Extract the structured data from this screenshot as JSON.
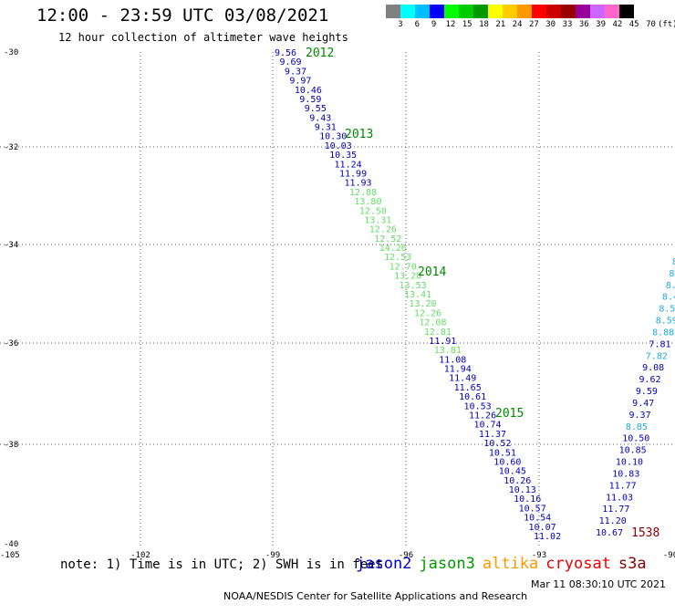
{
  "header": {
    "title": "12:00 - 23:59 UTC 03/08/2021",
    "subtitle": "12 hour collection of altimeter wave heights"
  },
  "legend": {
    "colors": [
      "#808080",
      "#00ffff",
      "#00bfff",
      "#0000ff",
      "#00ff00",
      "#00cc00",
      "#009900",
      "#ffff00",
      "#ffcc00",
      "#ff9900",
      "#ff0000",
      "#cc0000",
      "#990000",
      "#990099",
      "#cc66ff",
      "#ff66cc",
      "#000000"
    ],
    "labels": [
      "3",
      "6",
      "9",
      "12",
      "15",
      "18",
      "21",
      "24",
      "27",
      "30",
      "33",
      "36",
      "39",
      "42",
      "45",
      "70",
      "(ft)"
    ]
  },
  "map": {
    "lat_ticks": [
      "-30",
      "-32",
      "-34",
      "-36",
      "-38",
      "-40"
    ],
    "lon_ticks": [
      "-105",
      "-102",
      "-99",
      "-96",
      "-93",
      "-90"
    ],
    "time_labels": [
      {
        "text": "2012",
        "color": "#008800"
      },
      {
        "text": "2013",
        "color": "#008800"
      },
      {
        "text": "2014",
        "color": "#008800"
      },
      {
        "text": "2015",
        "color": "#008800"
      },
      {
        "text": "1538",
        "color": "#880000"
      }
    ],
    "track_left": {
      "values": [
        "9.56",
        "9.69",
        "9.37",
        "9.97",
        "10.46",
        "9.59",
        "9.55",
        "9.43",
        "9.31",
        "10.30",
        "10.03",
        "10.35",
        "11.24",
        "11.99",
        "11.93",
        "12.88",
        "13.80",
        "12.50",
        "13.31",
        "12.26",
        "12.52",
        "14.26",
        "12.53",
        "12.70",
        "13.28",
        "13.53",
        "13.41",
        "13.20",
        "12.26",
        "12.08",
        "12.81",
        "11.91",
        "13.81",
        "11.08",
        "11.94",
        "11.49",
        "11.65",
        "10.61",
        "10.53",
        "11.26",
        "10.74",
        "11.37",
        "10.52",
        "10.51",
        "10.60",
        "10.45",
        "10.26",
        "10.13",
        "10.16",
        "10.57",
        "10.54",
        "10.07",
        "11.02"
      ],
      "colors": [
        "#0000bb",
        "#0000bb",
        "#0000bb",
        "#0000bb",
        "#0000bb",
        "#0000bb",
        "#0000bb",
        "#0000bb",
        "#0000bb",
        "#0000bb",
        "#0000bb",
        "#0000bb",
        "#0000bb",
        "#0000bb",
        "#0000bb",
        "#66dd66",
        "#66dd66",
        "#66dd66",
        "#66dd66",
        "#66dd66",
        "#66dd66",
        "#66dd66",
        "#66dd66",
        "#66dd66",
        "#66dd66",
        "#66dd66",
        "#66dd66",
        "#66dd66",
        "#66dd66",
        "#66dd66",
        "#66dd66",
        "#0000bb",
        "#66dd66",
        "#0000bb",
        "#0000bb",
        "#0000bb",
        "#0000bb",
        "#0000bb",
        "#0000bb",
        "#0000bb",
        "#0000bb",
        "#0000bb",
        "#0000bb",
        "#0000bb",
        "#0000bb",
        "#0000bb",
        "#0000bb",
        "#0000bb",
        "#0000bb",
        "#0000bb",
        "#0000bb",
        "#0000bb",
        "#0000bb"
      ]
    },
    "track_right": {
      "values": [
        "8",
        "8",
        "8.",
        "8.4",
        "8.5",
        "8.59",
        "8.88",
        "7.81",
        "7.82",
        "9.08",
        "9.62",
        "9.59",
        "9.47",
        "9.37",
        "8.85",
        "10.50",
        "10.85",
        "10.10",
        "10.83",
        "11.77",
        "11.03",
        "11.77",
        "11.20",
        "10.67"
      ],
      "colors": [
        "#22aadd",
        "#22aadd",
        "#22aadd",
        "#22aadd",
        "#22aadd",
        "#22aadd",
        "#22aadd",
        "#0000bb",
        "#22aadd",
        "#0000bb",
        "#0000bb",
        "#0000bb",
        "#0000bb",
        "#0000bb",
        "#22aadd",
        "#0000bb",
        "#0000bb",
        "#0000bb",
        "#0000bb",
        "#0000bb",
        "#0000bb",
        "#0000bb",
        "#0000bb",
        "#0000bb"
      ]
    }
  },
  "footer": {
    "note": "note: 1) Time is in UTC; 2) SWH is in feet",
    "satellites": [
      {
        "name": "jason2",
        "color": "#0000cc"
      },
      {
        "name": "jason3",
        "color": "#009900"
      },
      {
        "name": "altika",
        "color": "#ff9900"
      },
      {
        "name": "cryosat",
        "color": "#ee0000"
      },
      {
        "name": "s3a",
        "color": "#880000"
      }
    ],
    "credit": "NOAA/NESDIS Center for Satellite Applications and Research",
    "timestamp": "Mar 11 08:30:10 UTC 2021"
  }
}
